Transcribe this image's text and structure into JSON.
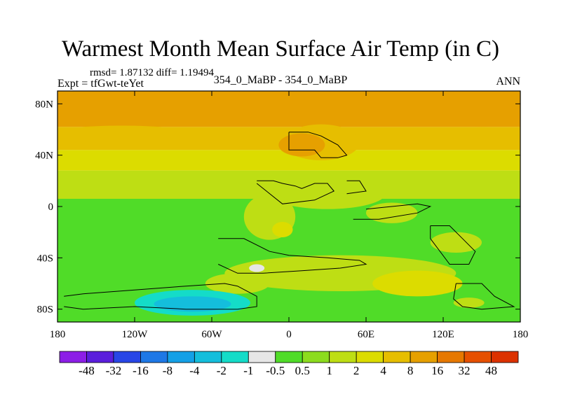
{
  "header": {
    "title": "Warmest Month Mean Surface Air Temp (in C)",
    "stats": "rmsd= 1.87132 diff= 1.19494",
    "experiment": "Expt = tfGwt-teYet",
    "subtitle": "354_0_MaBP - 354_0_MaBP",
    "period": "ANN"
  },
  "chart_data": {
    "type": "heatmap",
    "title": "Warmest Month Mean Surface Air Temp (in C)",
    "subtitle": "354_0_MaBP - 354_0_MaBP",
    "xlim": [
      -180,
      180
    ],
    "ylim": [
      -90,
      90
    ],
    "x_ticks": [
      {
        "value": -180,
        "label": "180"
      },
      {
        "value": -120,
        "label": "120W"
      },
      {
        "value": -60,
        "label": "60W"
      },
      {
        "value": 0,
        "label": "0"
      },
      {
        "value": 60,
        "label": "60E"
      },
      {
        "value": 120,
        "label": "120E"
      },
      {
        "value": 180,
        "label": "180"
      }
    ],
    "y_ticks": [
      {
        "value": 80,
        "label": "80N"
      },
      {
        "value": 40,
        "label": "40N"
      },
      {
        "value": 0,
        "label": "0"
      },
      {
        "value": -40,
        "label": "40S"
      },
      {
        "value": -80,
        "label": "80S"
      }
    ],
    "colorbar": {
      "colors": [
        "#8c1ee6",
        "#5a1edc",
        "#2846e6",
        "#1e78e6",
        "#14a0e6",
        "#14bedc",
        "#14dcc8",
        "#e6e6e6",
        "#50dc28",
        "#8cdc1e",
        "#bede14",
        "#dcdc00",
        "#e6be00",
        "#e6a000",
        "#e67800",
        "#e65000",
        "#dc3200"
      ],
      "labels": [
        "-48",
        "-32",
        "-16",
        "-8",
        "-4",
        "-2",
        "-1",
        "-0.5",
        "0.5",
        "1",
        "2",
        "4",
        "8",
        "16",
        "32",
        "48"
      ]
    },
    "zones": [
      {
        "lat_from": 90,
        "lat_to": 62,
        "value": 8
      },
      {
        "lat_from": 62,
        "lat_to": 44,
        "value": 4
      },
      {
        "lat_from": 44,
        "lat_to": 28,
        "value": 2
      },
      {
        "lat_from": 28,
        "lat_to": 6,
        "value": 1
      },
      {
        "lat_from": 6,
        "lat_to": -90,
        "value": 0
      }
    ],
    "blobs": [
      {
        "lon": 25,
        "lat": 50,
        "rx": 30,
        "ry": 14,
        "value": 4
      },
      {
        "lon": 10,
        "lat": 48,
        "rx": 18,
        "ry": 9,
        "value": 8
      },
      {
        "lon": 150,
        "lat": 56,
        "rx": 30,
        "ry": 6,
        "value": 4
      },
      {
        "lon": -130,
        "lat": 58,
        "rx": 50,
        "ry": 5,
        "value": 4
      },
      {
        "lon": 30,
        "lat": 10,
        "rx": 45,
        "ry": 12,
        "value": 1
      },
      {
        "lon": -15,
        "lat": -8,
        "rx": 20,
        "ry": 18,
        "value": 1
      },
      {
        "lon": -5,
        "lat": -18,
        "rx": 8,
        "ry": 6,
        "value": 2
      },
      {
        "lon": 80,
        "lat": -5,
        "rx": 20,
        "ry": 8,
        "value": 1
      },
      {
        "lon": 130,
        "lat": -28,
        "rx": 20,
        "ry": 8,
        "value": 1
      },
      {
        "lon": 40,
        "lat": -52,
        "rx": 90,
        "ry": 14,
        "value": 1
      },
      {
        "lon": 100,
        "lat": -60,
        "rx": 35,
        "ry": 10,
        "value": 2
      },
      {
        "lon": -40,
        "lat": -60,
        "rx": 25,
        "ry": 8,
        "value": 1
      },
      {
        "lon": -75,
        "lat": -75,
        "rx": 45,
        "ry": 10,
        "value": -2
      },
      {
        "lon": -75,
        "lat": -76,
        "rx": 30,
        "ry": 6,
        "value": -4
      },
      {
        "lon": -25,
        "lat": -48,
        "rx": 6,
        "ry": 3,
        "value": -1
      },
      {
        "lon": 140,
        "lat": -75,
        "rx": 12,
        "ry": 4,
        "value": 1
      }
    ],
    "outlines": [
      [
        [
          0,
          58
        ],
        [
          15,
          58
        ],
        [
          25,
          55
        ],
        [
          38,
          48
        ],
        [
          45,
          40
        ],
        [
          38,
          38
        ],
        [
          25,
          38
        ],
        [
          20,
          44
        ],
        [
          0,
          44
        ],
        [
          0,
          58
        ]
      ],
      [
        [
          -25,
          20
        ],
        [
          -12,
          20
        ],
        [
          -5,
          18
        ],
        [
          5,
          16
        ],
        [
          10,
          14
        ],
        [
          20,
          18
        ],
        [
          30,
          18
        ],
        [
          35,
          12
        ],
        [
          20,
          5
        ],
        [
          -5,
          2
        ],
        [
          -25,
          18
        ]
      ],
      [
        [
          45,
          20
        ],
        [
          55,
          20
        ],
        [
          60,
          12
        ],
        [
          45,
          10
        ]
      ],
      [
        [
          50,
          -10
        ],
        [
          70,
          -10
        ],
        [
          100,
          -5
        ],
        [
          110,
          0
        ],
        [
          100,
          2
        ],
        [
          80,
          0
        ],
        [
          60,
          -2
        ]
      ],
      [
        [
          110,
          -15
        ],
        [
          125,
          -15
        ],
        [
          135,
          -25
        ],
        [
          145,
          -35
        ],
        [
          140,
          -45
        ],
        [
          125,
          -45
        ],
        [
          110,
          -25
        ],
        [
          110,
          -15
        ]
      ],
      [
        [
          -55,
          -25
        ],
        [
          -35,
          -25
        ],
        [
          -15,
          -35
        ],
        [
          0,
          -38
        ],
        [
          30,
          -40
        ],
        [
          55,
          -42
        ],
        [
          60,
          -45
        ],
        [
          40,
          -48
        ],
        [
          10,
          -50
        ],
        [
          -20,
          -52
        ],
        [
          -40,
          -52
        ],
        [
          -55,
          -45
        ]
      ],
      [
        [
          -175,
          -70
        ],
        [
          -160,
          -68
        ],
        [
          -120,
          -65
        ],
        [
          -80,
          -62
        ],
        [
          -50,
          -60
        ],
        [
          -40,
          -62
        ],
        [
          -25,
          -70
        ],
        [
          -25,
          -78
        ],
        [
          -40,
          -80
        ],
        [
          -80,
          -80
        ],
        [
          -120,
          -78
        ],
        [
          -160,
          -80
        ],
        [
          -175,
          -78
        ]
      ],
      [
        [
          130,
          -60
        ],
        [
          150,
          -60
        ],
        [
          160,
          -70
        ],
        [
          175,
          -78
        ],
        [
          150,
          -80
        ],
        [
          135,
          -78
        ],
        [
          128,
          -72
        ],
        [
          130,
          -60
        ]
      ]
    ]
  }
}
